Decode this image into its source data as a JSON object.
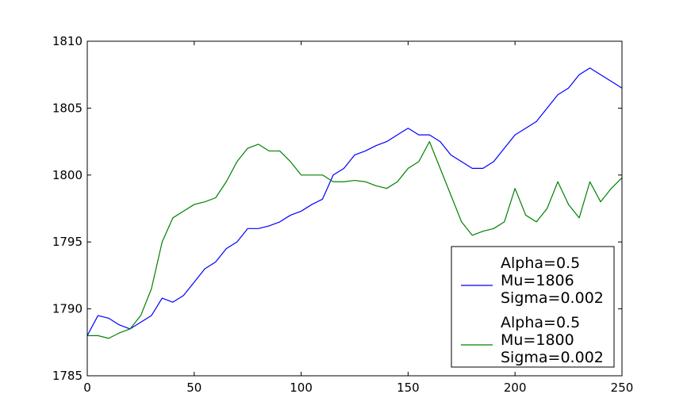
{
  "chart_data": {
    "type": "line",
    "title": "",
    "xlabel": "",
    "ylabel": "",
    "xlim": [
      0,
      250
    ],
    "ylim": [
      1785,
      1810
    ],
    "xticks": [
      "0",
      "50",
      "100",
      "150",
      "200",
      "250"
    ],
    "yticks": [
      "1785",
      "1790",
      "1795",
      "1800",
      "1805",
      "1810"
    ],
    "grid": false,
    "legend_position": "lower-right",
    "series": [
      {
        "legend": [
          "Alpha=0.5",
          "Mu=1806",
          "Sigma=0.002"
        ],
        "color": "#0000ff",
        "x": [
          0,
          5,
          10,
          15,
          20,
          25,
          30,
          35,
          40,
          45,
          50,
          55,
          60,
          65,
          70,
          75,
          80,
          85,
          90,
          95,
          100,
          105,
          110,
          115,
          120,
          125,
          130,
          135,
          140,
          145,
          150,
          155,
          160,
          165,
          170,
          175,
          180,
          185,
          190,
          195,
          200,
          205,
          210,
          215,
          220,
          225,
          230,
          235,
          240,
          245,
          250
        ],
        "values": [
          1788,
          1789.5,
          1789.3,
          1788.8,
          1788.5,
          1789,
          1789.5,
          1790.8,
          1790.5,
          1791,
          1792,
          1793,
          1793.5,
          1794.5,
          1795,
          1796,
          1796,
          1796.2,
          1796.5,
          1797,
          1797.3,
          1797.8,
          1798.2,
          1800,
          1800.5,
          1801.5,
          1801.8,
          1802.2,
          1802.5,
          1803,
          1803.5,
          1803,
          1803,
          1802.5,
          1801.5,
          1801,
          1800.5,
          1800.5,
          1801,
          1802,
          1803,
          1803.5,
          1804,
          1805,
          1806,
          1806.5,
          1807.5,
          1808,
          1807.5,
          1807,
          1806.5
        ]
      },
      {
        "legend": [
          "Alpha=0.5",
          "Mu=1800",
          "Sigma=0.002"
        ],
        "color": "#008000",
        "x": [
          0,
          5,
          10,
          15,
          20,
          25,
          30,
          35,
          40,
          45,
          50,
          55,
          60,
          65,
          70,
          75,
          80,
          85,
          90,
          95,
          100,
          105,
          110,
          115,
          120,
          125,
          130,
          135,
          140,
          145,
          150,
          155,
          160,
          165,
          170,
          175,
          180,
          185,
          190,
          195,
          200,
          205,
          210,
          215,
          220,
          225,
          230,
          235,
          240,
          245,
          250
        ],
        "values": [
          1788,
          1788,
          1787.8,
          1788.2,
          1788.5,
          1789.5,
          1791.5,
          1795,
          1796.8,
          1797.3,
          1797.8,
          1798,
          1798.3,
          1799.5,
          1801,
          1802,
          1802.3,
          1801.8,
          1801.8,
          1801,
          1800,
          1800,
          1800,
          1799.5,
          1799.5,
          1799.6,
          1799.5,
          1799.2,
          1799,
          1799.5,
          1800.5,
          1801,
          1802.5,
          1800.5,
          1798.5,
          1796.5,
          1795.5,
          1795.8,
          1796,
          1796.5,
          1799,
          1797,
          1796.5,
          1797.5,
          1799.5,
          1797.8,
          1796.8,
          1799.5,
          1798,
          1799,
          1799.8
        ]
      }
    ]
  }
}
